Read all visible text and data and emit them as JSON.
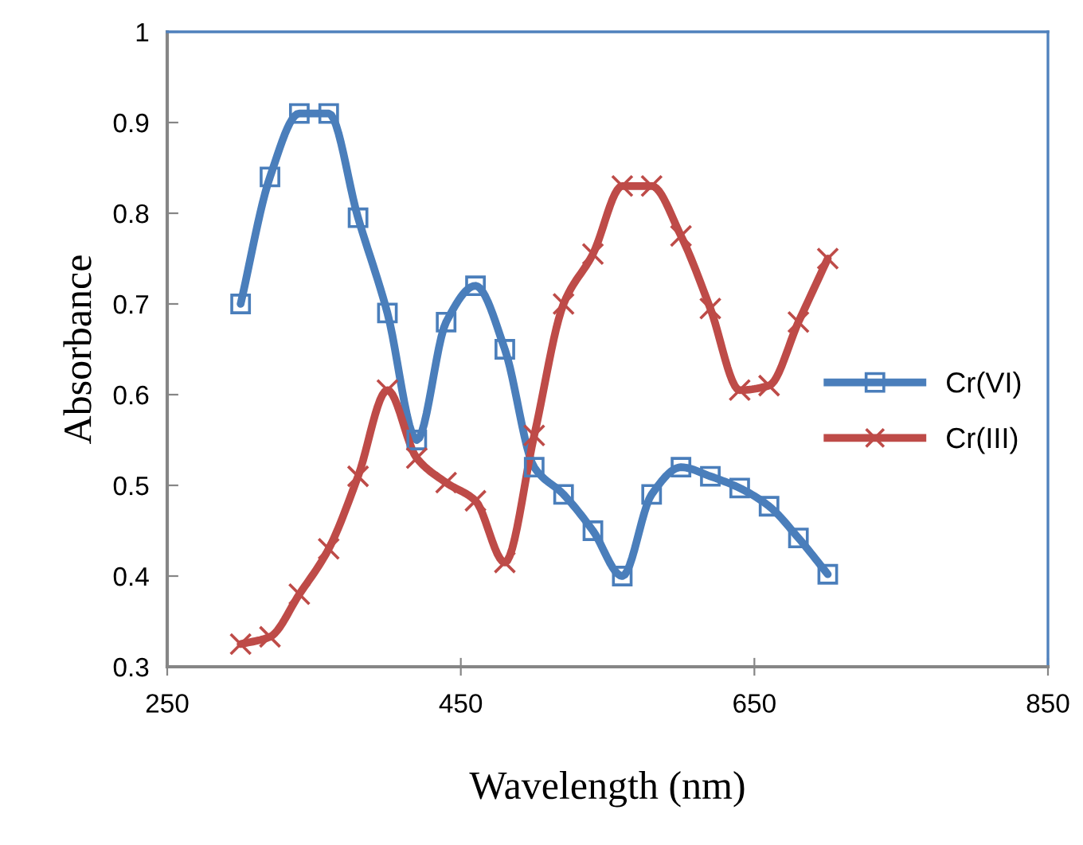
{
  "chart_data": {
    "type": "line",
    "xlabel": "Wavelength (nm)",
    "ylabel": "Absorbance",
    "x": [
      300,
      320,
      340,
      360,
      380,
      400,
      420,
      440,
      460,
      480,
      500,
      520,
      540,
      560,
      580,
      600,
      620,
      640,
      660,
      680,
      700
    ],
    "series": [
      {
        "name": "Cr(VI)",
        "color": "#4a7ebb",
        "marker": "square",
        "values": [
          0.7,
          0.84,
          0.91,
          0.91,
          0.795,
          0.69,
          0.55,
          0.68,
          0.72,
          0.65,
          0.52,
          0.49,
          0.45,
          0.4,
          0.49,
          0.52,
          0.51,
          0.497,
          0.477,
          0.442,
          0.402
        ]
      },
      {
        "name": "Cr(III)",
        "color": "#be4b48",
        "marker": "cross",
        "values": [
          0.325,
          0.333,
          0.38,
          0.43,
          0.51,
          0.605,
          0.53,
          0.503,
          0.483,
          0.415,
          0.555,
          0.7,
          0.755,
          0.83,
          0.83,
          0.775,
          0.695,
          0.605,
          0.61,
          0.68,
          0.75
        ]
      }
    ],
    "xlim": [
      250,
      850
    ],
    "xticks": [
      250,
      450,
      650,
      850
    ],
    "ylim": [
      0.3,
      1
    ],
    "yticks": [
      0.3,
      0.4,
      0.5,
      0.6,
      0.7,
      0.8,
      0.9,
      1
    ],
    "grid": false,
    "legend": "right",
    "line_style": "solid"
  }
}
